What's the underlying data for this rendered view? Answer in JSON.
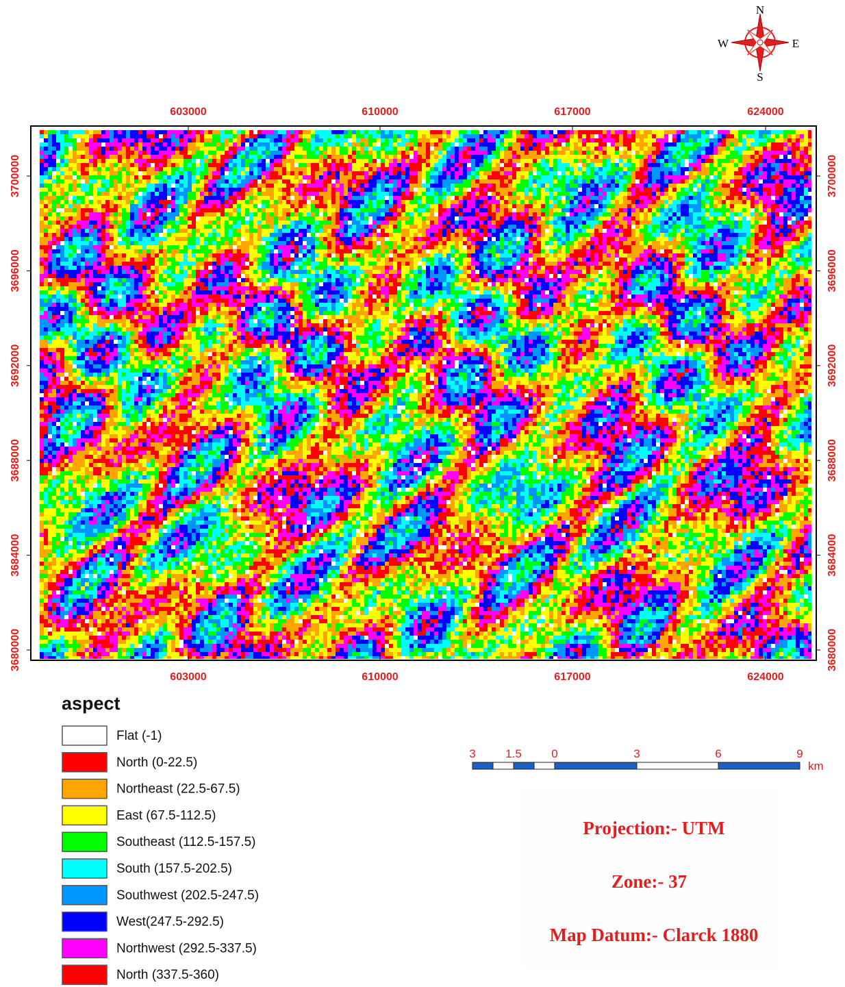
{
  "compass": {
    "north": "N",
    "east": "E",
    "south": "S",
    "west": "W"
  },
  "grid": {
    "x_labels": [
      "603000",
      "610000",
      "617000",
      "624000"
    ],
    "y_labels": [
      "3700000",
      "3696000",
      "3692000",
      "3688000",
      "3684000",
      "3680000"
    ]
  },
  "legend": {
    "title": "aspect",
    "items": [
      {
        "label": "Flat (-1)",
        "color": "#ffffff"
      },
      {
        "label": "North (0-22.5)",
        "color": "#ff0000"
      },
      {
        "label": "Northeast (22.5-67.5)",
        "color": "#ffa500"
      },
      {
        "label": "East (67.5-112.5)",
        "color": "#ffff00"
      },
      {
        "label": "Southeast (112.5-157.5)",
        "color": "#00ff00"
      },
      {
        "label": "South (157.5-202.5)",
        "color": "#00ffff"
      },
      {
        "label": "Southwest (202.5-247.5)",
        "color": "#0096ff"
      },
      {
        "label": "West(247.5-292.5)",
        "color": "#0000ff"
      },
      {
        "label": "Northwest (292.5-337.5)",
        "color": "#ff00ff"
      },
      {
        "label": "North (337.5-360)",
        "color": "#ff0000"
      }
    ]
  },
  "scale_bar": {
    "labels": [
      "3",
      "1.5",
      "0",
      "3",
      "6",
      "9"
    ],
    "unit": "km"
  },
  "info": {
    "projection": "Projection:- UTM",
    "zone": "Zone:- 37",
    "datum": "Map Datum:- Clarck 1880"
  }
}
